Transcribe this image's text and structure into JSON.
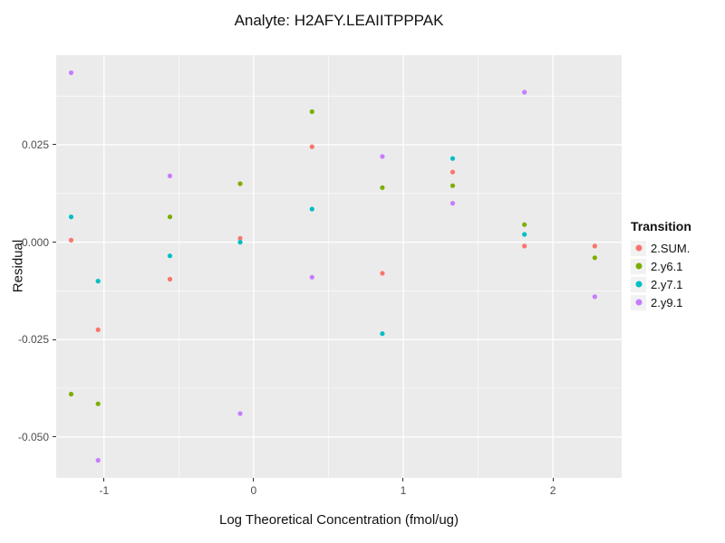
{
  "title": "Analyte: H2AFY.LEAIITPPPAK",
  "xlabel": "Log Theoretical Concentration (fmol/ug)",
  "ylabel": "Residual",
  "legend": {
    "title": "Transition",
    "entries": [
      {
        "label": "2.SUM.",
        "color": "#F8766D"
      },
      {
        "label": "2.y6.1",
        "color": "#7CAE00"
      },
      {
        "label": "2.y7.1",
        "color": "#00BFC4"
      },
      {
        "label": "2.y9.1",
        "color": "#C77CFF"
      }
    ]
  },
  "chart_data": {
    "type": "scatter",
    "title": "Analyte: H2AFY.LEAIITPPPAK",
    "xlabel": "Log Theoretical Concentration (fmol/ug)",
    "ylabel": "Residual",
    "legend_title": "Transition",
    "legend_position": "right",
    "grid": true,
    "panel_background": "#EBEBEB",
    "grid_color": "#FFFFFF",
    "xlim": [
      -1.32,
      2.46
    ],
    "ylim": [
      -0.0605,
      0.048
    ],
    "x_ticks": [
      -1,
      0,
      1,
      2
    ],
    "x_tick_labels": [
      "-1",
      "0",
      "1",
      "2"
    ],
    "y_ticks": [
      -0.05,
      -0.025,
      0.0,
      0.025
    ],
    "y_tick_labels": [
      "-0.050",
      "-0.025",
      "0.000",
      "0.025"
    ],
    "x_minor_ticks": [
      -0.5,
      0.5,
      1.5
    ],
    "y_minor_ticks": [
      -0.0375,
      -0.0125,
      0.0125,
      0.0375
    ],
    "series": [
      {
        "name": "2.SUM.",
        "color": "#F8766D",
        "points": [
          [
            -1.22,
            0.0005
          ],
          [
            -1.04,
            -0.0225
          ],
          [
            -0.56,
            -0.0095
          ],
          [
            -0.09,
            0.001
          ],
          [
            0.39,
            0.0245
          ],
          [
            0.86,
            -0.008
          ],
          [
            1.33,
            0.018
          ],
          [
            1.81,
            -0.001
          ],
          [
            2.28,
            -0.001
          ]
        ]
      },
      {
        "name": "2.y6.1",
        "color": "#7CAE00",
        "points": [
          [
            -1.22,
            -0.039
          ],
          [
            -1.04,
            -0.0415
          ],
          [
            -0.56,
            0.0065
          ],
          [
            -0.09,
            0.015
          ],
          [
            0.39,
            0.0335
          ],
          [
            0.86,
            0.014
          ],
          [
            1.33,
            0.0145
          ],
          [
            1.81,
            0.0045
          ],
          [
            2.28,
            -0.004
          ]
        ]
      },
      {
        "name": "2.y7.1",
        "color": "#00BFC4",
        "points": [
          [
            -1.22,
            0.0065
          ],
          [
            -1.04,
            -0.01
          ],
          [
            -0.56,
            -0.0035
          ],
          [
            -0.09,
            0.0
          ],
          [
            0.39,
            0.0085
          ],
          [
            0.86,
            -0.0235
          ],
          [
            1.33,
            0.0215
          ],
          [
            1.81,
            0.002
          ]
        ]
      },
      {
        "name": "2.y9.1",
        "color": "#C77CFF",
        "points": [
          [
            -1.22,
            0.0435
          ],
          [
            -1.04,
            -0.056
          ],
          [
            -0.56,
            0.017
          ],
          [
            -0.09,
            -0.044
          ],
          [
            0.39,
            -0.009
          ],
          [
            0.86,
            0.022
          ],
          [
            1.33,
            0.01
          ],
          [
            1.81,
            0.0385
          ],
          [
            2.28,
            -0.014
          ]
        ]
      }
    ]
  }
}
